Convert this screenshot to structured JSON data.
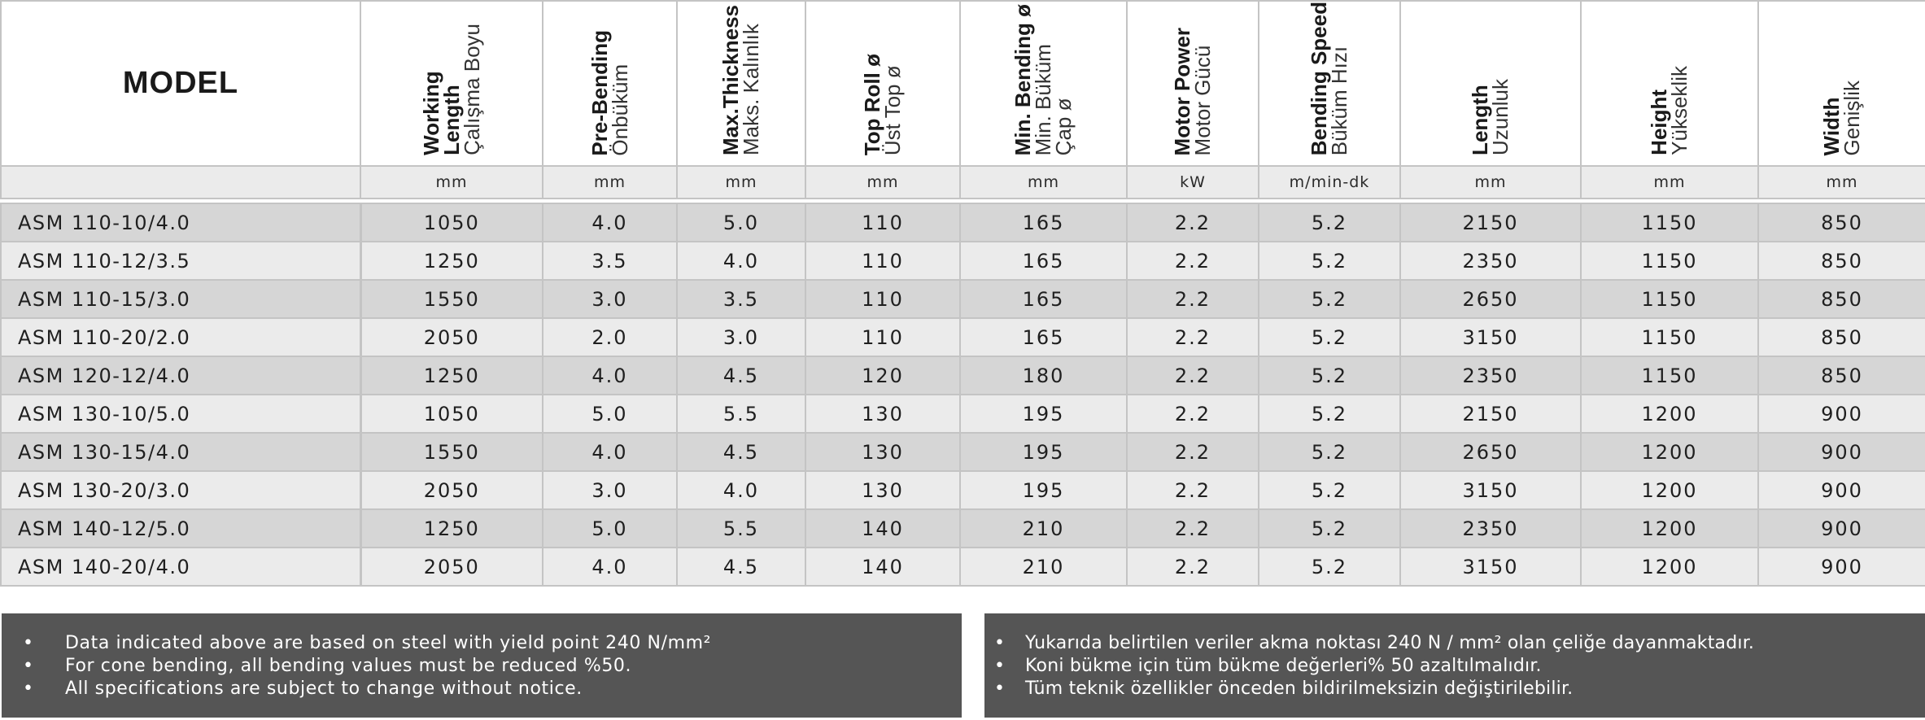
{
  "header": {
    "model_label": "MODEL",
    "columns": [
      {
        "en": "Working",
        "en2": "Length",
        "tr": "Çalışma Boyu",
        "unit": "mm"
      },
      {
        "en": "Pre-Bending",
        "en2": "",
        "tr": "Önbüküm",
        "unit": "mm"
      },
      {
        "en": "Max.Thickness",
        "en2": "",
        "tr": "Maks. Kalınlık",
        "unit": "mm"
      },
      {
        "en": "Top Roll ø",
        "en2": "",
        "tr": "Üst Top ø",
        "unit": "mm"
      },
      {
        "en": "Min. Bending ø",
        "en2": "",
        "tr": "Min. Büküm",
        "tr2": "Çap ø",
        "unit": "mm"
      },
      {
        "en": "Motor Power",
        "en2": "",
        "tr": "Motor Gücü",
        "unit": "kW"
      },
      {
        "en": "Bending Speed",
        "en2": "",
        "tr": "Büküm Hızı",
        "unit": "m/min-dk"
      },
      {
        "en": "Length",
        "en2": "",
        "tr": "Uzunluk",
        "unit": "mm"
      },
      {
        "en": "Height",
        "en2": "",
        "tr": "Yükseklik",
        "unit": "mm"
      },
      {
        "en": "Width",
        "en2": "",
        "tr": "Genişlik",
        "unit": "mm"
      }
    ]
  },
  "rows": [
    {
      "model": "ASM 110-10/4.0",
      "values": [
        "1050",
        "4.0",
        "5.0",
        "110",
        "165",
        "2.2",
        "5.2",
        "2150",
        "1150",
        "850"
      ]
    },
    {
      "model": "ASM 110-12/3.5",
      "values": [
        "1250",
        "3.5",
        "4.0",
        "110",
        "165",
        "2.2",
        "5.2",
        "2350",
        "1150",
        "850"
      ]
    },
    {
      "model": "ASM 110-15/3.0",
      "values": [
        "1550",
        "3.0",
        "3.5",
        "110",
        "165",
        "2.2",
        "5.2",
        "2650",
        "1150",
        "850"
      ]
    },
    {
      "model": "ASM 110-20/2.0",
      "values": [
        "2050",
        "2.0",
        "3.0",
        "110",
        "165",
        "2.2",
        "5.2",
        "3150",
        "1150",
        "850"
      ]
    },
    {
      "model": "ASM 120-12/4.0",
      "values": [
        "1250",
        "4.0",
        "4.5",
        "120",
        "180",
        "2.2",
        "5.2",
        "2350",
        "1150",
        "850"
      ]
    },
    {
      "model": "ASM 130-10/5.0",
      "values": [
        "1050",
        "5.0",
        "5.5",
        "130",
        "195",
        "2.2",
        "5.2",
        "2150",
        "1200",
        "900"
      ]
    },
    {
      "model": "ASM 130-15/4.0",
      "values": [
        "1550",
        "4.0",
        "4.5",
        "130",
        "195",
        "2.2",
        "5.2",
        "2650",
        "1200",
        "900"
      ]
    },
    {
      "model": "ASM 130-20/3.0",
      "values": [
        "2050",
        "3.0",
        "4.0",
        "130",
        "195",
        "2.2",
        "5.2",
        "3150",
        "1200",
        "900"
      ]
    },
    {
      "model": "ASM 140-12/5.0",
      "values": [
        "1250",
        "5.0",
        "5.5",
        "140",
        "210",
        "2.2",
        "5.2",
        "2350",
        "1200",
        "900"
      ]
    },
    {
      "model": "ASM 140-20/4.0",
      "values": [
        "2050",
        "4.0",
        "4.5",
        "140",
        "210",
        "2.2",
        "5.2",
        "3150",
        "1200",
        "900"
      ]
    }
  ],
  "notes_en": [
    "Data indicated above are based on steel with yield point 240 N/mm²",
    "For cone bending, all bending values must be reduced %50.",
    "All specifications are subject to change without notice."
  ],
  "notes_tr": [
    "Yukarıda belirtilen veriler akma noktası 240 N / mm² olan çeliğe dayanmaktadır.",
    "Koni bükme için tüm bükme değerleri% 50 azaltılmalıdır.",
    "Tüm teknik özellikler önceden bildirilmeksizin değiştirilebilir."
  ],
  "bullet": "•",
  "colors": {
    "note_background": "#555555",
    "row_dark": "#d6d6d6",
    "row_light": "#ebebeb",
    "grid": "#c4c4c4"
  }
}
